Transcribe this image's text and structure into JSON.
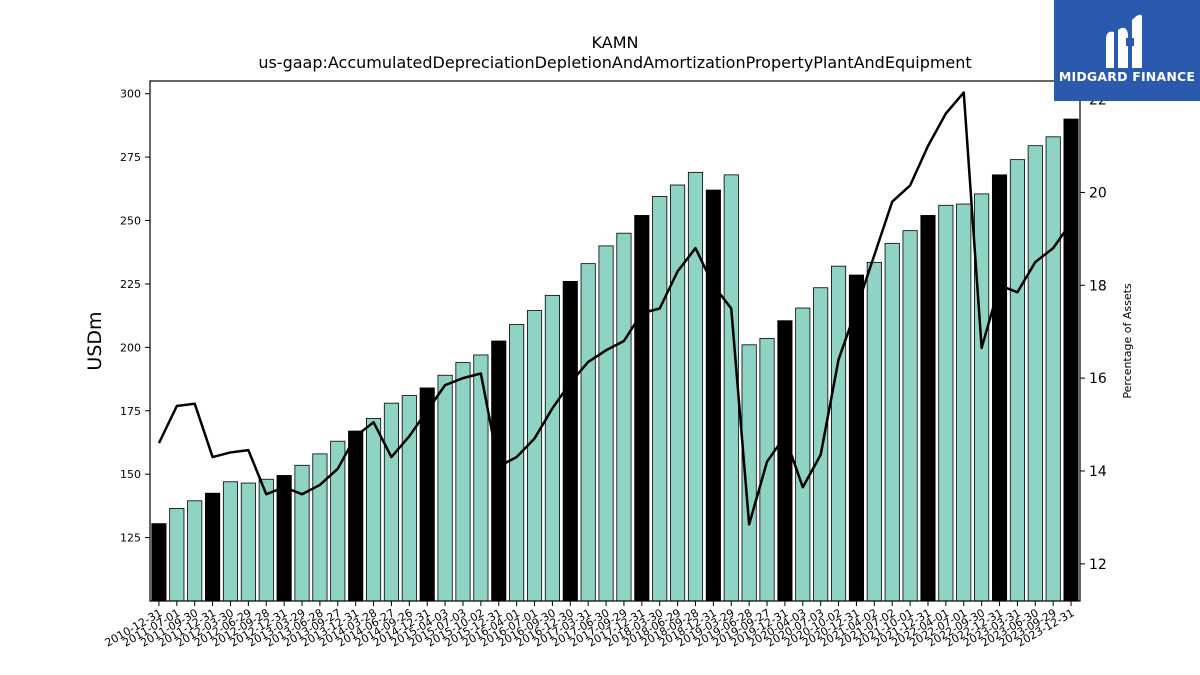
{
  "logo": {
    "text": "MIDGARD FINANCE",
    "icon": "midgard-logo-icon"
  },
  "chart_data": {
    "type": "bar",
    "title": "KAMN",
    "subtitle": "us-gaap:AccumulatedDepreciationDepletionAndAmortizationPropertyPlantAndEquipment",
    "ylabel": "USDm",
    "y2label": "Percentage of Assets",
    "ylim": [
      100,
      305
    ],
    "y2lim": [
      11.2,
      22.4
    ],
    "yticks": [
      125,
      150,
      175,
      200,
      225,
      250,
      275,
      300
    ],
    "y2ticks": [
      12,
      14,
      16,
      18,
      20,
      22
    ],
    "grid": false,
    "colors": {
      "annual": "#000000",
      "quarterly": "#8fd3c5",
      "line": "#000000"
    },
    "categories": [
      "2010-12-31",
      "2011-07-01",
      "2011-09-30",
      "2011-12-31",
      "2012-03-30",
      "2012-06-29",
      "2012-09-28",
      "2012-12-31",
      "2013-03-29",
      "2013-06-28",
      "2013-09-27",
      "2013-12-31",
      "2014-03-28",
      "2014-06-27",
      "2014-09-26",
      "2014-12-31",
      "2015-04-03",
      "2015-07-03",
      "2015-10-02",
      "2015-12-31",
      "2016-04-01",
      "2016-07-01",
      "2016-09-30",
      "2016-12-30",
      "2017-03-31",
      "2017-06-30",
      "2017-09-29",
      "2017-12-31",
      "2018-03-30",
      "2018-06-29",
      "2018-09-28",
      "2018-12-31",
      "2019-03-29",
      "2019-06-28",
      "2019-09-27",
      "2019-12-31",
      "2020-04-03",
      "2020-07-03",
      "2020-10-02",
      "2020-12-31",
      "2021-04-02",
      "2021-07-02",
      "2021-10-01",
      "2021-12-31",
      "2022-04-01",
      "2022-07-01",
      "2022-09-30",
      "2022-12-31",
      "2023-03-31",
      "2023-06-30",
      "2023-09-29",
      "2023-12-31"
    ],
    "is_annual": [
      true,
      false,
      false,
      true,
      false,
      false,
      false,
      true,
      false,
      false,
      false,
      true,
      false,
      false,
      false,
      true,
      false,
      false,
      false,
      true,
      false,
      false,
      false,
      true,
      false,
      false,
      false,
      true,
      false,
      false,
      false,
      true,
      false,
      false,
      false,
      true,
      false,
      false,
      false,
      true,
      false,
      false,
      false,
      true,
      false,
      false,
      false,
      true,
      false,
      false,
      false,
      true
    ],
    "series": [
      {
        "name": "USDm",
        "type": "bar",
        "values": [
          130.5,
          136.5,
          139.5,
          142.5,
          147,
          146.5,
          148,
          149.5,
          153.5,
          158,
          163,
          167,
          172,
          178,
          181,
          184,
          189,
          194,
          197,
          202.5,
          209,
          214.5,
          220.5,
          226,
          233,
          240,
          245,
          252,
          259.5,
          264,
          269,
          262,
          268,
          201,
          203.5,
          210.5,
          215.5,
          223.5,
          232,
          228.5,
          233.5,
          241,
          246,
          252,
          256,
          256.5,
          260.5,
          268,
          274,
          279.5,
          283,
          290
        ]
      },
      {
        "name": "Percentage of Assets",
        "type": "line",
        "axis": "right",
        "values": [
          14.6,
          15.4,
          15.45,
          14.3,
          14.4,
          14.45,
          13.5,
          13.65,
          13.5,
          13.7,
          14.05,
          14.75,
          15.05,
          14.3,
          14.75,
          15.3,
          15.85,
          16.0,
          16.1,
          14.1,
          14.3,
          14.7,
          15.35,
          15.9,
          16.35,
          16.6,
          16.8,
          17.4,
          17.5,
          18.3,
          18.8,
          18.0,
          17.5,
          12.85,
          14.2,
          14.75,
          13.65,
          14.35,
          16.4,
          17.5,
          18.65,
          19.8,
          20.15,
          21.0,
          21.7,
          22.15,
          16.65,
          18.0,
          17.85,
          18.5,
          18.8,
          19.35
        ]
      }
    ]
  }
}
